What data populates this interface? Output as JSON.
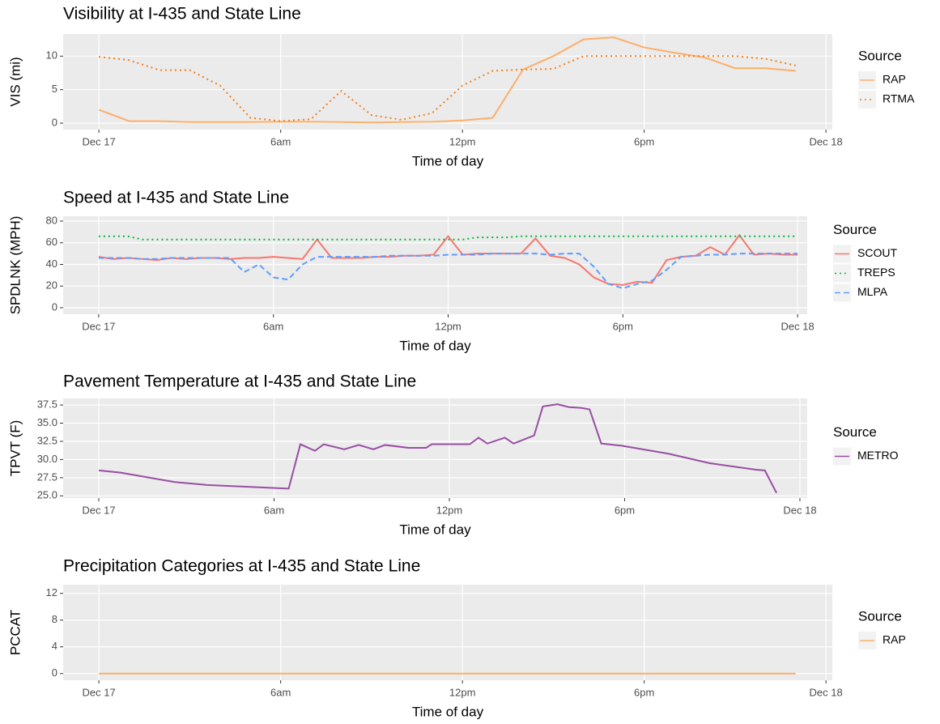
{
  "chart_data": [
    {
      "type": "line",
      "title": "Visibility at I-435 and State Line",
      "xlabel": "Time of day",
      "ylabel": "VIS (mi)",
      "x": [
        0,
        1,
        2,
        3,
        4,
        5,
        6,
        7,
        8,
        9,
        10,
        11,
        12,
        13,
        14,
        15,
        16,
        17,
        18,
        19,
        20,
        21,
        22,
        23
      ],
      "xlim": [
        -1.18,
        24.21
      ],
      "xticks": [
        {
          "value": 0,
          "label": "Dec 17"
        },
        {
          "value": 6,
          "label": "6am"
        },
        {
          "value": 12,
          "label": "12pm"
        },
        {
          "value": 18,
          "label": "6pm"
        },
        {
          "value": 24,
          "label": "Dec 18"
        }
      ],
      "ylim": [
        -0.96,
        13.3
      ],
      "yticks": [
        0,
        5,
        10
      ],
      "grid": true,
      "legend": "right",
      "legend_title": "Source",
      "series": [
        {
          "name": "RAP",
          "color": "#fdae6b",
          "linetype": "solid",
          "values": [
            2,
            0.3,
            0.3,
            0.15,
            0.15,
            0.15,
            0.2,
            0.2,
            0.15,
            0.1,
            0.15,
            0.2,
            0.4,
            0.8,
            8,
            10,
            12.5,
            12.8,
            11.3,
            10.5,
            9.8,
            8.2,
            8.2,
            7.8
          ]
        },
        {
          "name": "RTMA",
          "color": "#f57f17",
          "linetype": "dotted",
          "values": [
            9.9,
            9.4,
            7.9,
            7.9,
            5.6,
            0.8,
            0.3,
            0.6,
            4.8,
            1.2,
            0.5,
            1.5,
            5.6,
            7.8,
            8,
            8.1,
            10,
            10,
            10,
            10,
            10,
            10,
            9.6,
            8.6
          ]
        }
      ]
    },
    {
      "type": "line",
      "title": "Speed at I-435 and State Line",
      "xlabel": "Time of day",
      "ylabel": "SPDLNK (MPH)",
      "x": [
        0,
        0.5,
        1,
        1.5,
        2,
        2.5,
        3,
        3.5,
        4,
        4.5,
        5,
        5.5,
        6,
        6.5,
        7,
        7.5,
        8,
        8.5,
        9,
        9.5,
        10,
        10.5,
        11,
        11.5,
        12,
        12.5,
        13,
        13.5,
        14,
        14.5,
        15,
        15.5,
        16,
        16.5,
        17,
        17.5,
        18,
        18.5,
        19,
        19.5,
        20,
        20.5,
        21,
        21.5,
        22,
        22.5,
        23,
        23.5,
        24
      ],
      "xlim": [
        -1.22,
        24.33
      ],
      "xticks": [
        {
          "value": 0,
          "label": "Dec 17"
        },
        {
          "value": 6,
          "label": "6am"
        },
        {
          "value": 12,
          "label": "12pm"
        },
        {
          "value": 18,
          "label": "6pm"
        },
        {
          "value": 24,
          "label": "Dec 18"
        }
      ],
      "ylim": [
        -6,
        84.5
      ],
      "yticks": [
        0,
        20,
        40,
        60,
        80
      ],
      "grid": true,
      "legend": "right",
      "legend_title": "Source",
      "series": [
        {
          "name": "SCOUT",
          "color": "#f8766d",
          "linetype": "solid",
          "values": [
            47,
            45,
            46,
            45,
            44,
            46,
            45,
            46,
            46,
            45,
            46,
            46,
            47,
            46,
            45,
            63,
            46,
            46,
            46,
            47,
            47,
            48,
            48,
            49,
            66,
            49,
            50,
            50,
            50,
            50,
            64,
            48,
            46,
            40,
            28,
            22,
            21,
            24,
            23,
            44,
            47,
            48,
            56,
            49,
            67,
            49,
            50,
            49,
            49
          ]
        },
        {
          "name": "TREPS",
          "color": "#00ba38",
          "linetype": "dotted",
          "values": [
            66,
            66,
            66,
            63,
            63,
            63,
            63,
            63,
            63,
            63,
            63,
            63,
            63,
            63,
            63,
            63,
            63,
            63,
            63,
            63,
            63,
            63,
            63,
            63,
            63,
            63,
            65,
            65,
            65,
            66,
            66,
            66,
            66,
            66,
            66,
            66,
            66,
            66,
            66,
            66,
            66,
            66,
            66,
            66,
            66,
            66,
            66,
            66,
            66
          ]
        },
        {
          "name": "MLPA",
          "color": "#619cff",
          "linetype": "dashed",
          "values": [
            46,
            46,
            46,
            45,
            45,
            46,
            46,
            46,
            46,
            46,
            33,
            40,
            28,
            26,
            40,
            47,
            47,
            47,
            47,
            47,
            48,
            48,
            48,
            48,
            49,
            49,
            49,
            50,
            50,
            50,
            50,
            49,
            50,
            50,
            38,
            22,
            18,
            22,
            25,
            35,
            47,
            48,
            49,
            49,
            50,
            50,
            50,
            50,
            50
          ]
        }
      ]
    },
    {
      "type": "line",
      "title": "Pavement Temperature at I-435 and State Line",
      "xlabel": "Time of day",
      "ylabel": "TPVT (F)",
      "x": [
        0,
        0.75,
        2.6,
        3.7,
        4.8,
        6.5,
        6.9,
        7.4,
        7.7,
        8.4,
        8.9,
        9.4,
        9.8,
        10.6,
        11.2,
        11.4,
        12.7,
        13,
        13.3,
        13.9,
        14.2,
        14.9,
        15.2,
        15.7,
        16.1,
        16.5,
        16.8,
        17.2,
        17.9,
        19.5,
        20.9,
        22.5,
        22.8,
        23.2
      ],
      "xlim": [
        -1.22,
        24.25
      ],
      "xticks": [
        {
          "value": 0,
          "label": "Dec 17"
        },
        {
          "value": 6,
          "label": "6am"
        },
        {
          "value": 12,
          "label": "12pm"
        },
        {
          "value": 18,
          "label": "6pm"
        },
        {
          "value": 24,
          "label": "Dec 18"
        }
      ],
      "ylim": [
        24.7,
        38.4
      ],
      "yticks": [
        {
          "value": 25,
          "label": "25.0"
        },
        {
          "value": 27.5,
          "label": "27.5"
        },
        {
          "value": 30,
          "label": "30.0"
        },
        {
          "value": 32.5,
          "label": "32.5"
        },
        {
          "value": 35,
          "label": "35.0"
        },
        {
          "value": 37.5,
          "label": "37.5"
        }
      ],
      "grid": true,
      "legend": "right",
      "legend_title": "Source",
      "series": [
        {
          "name": "METRO",
          "color": "#984ea3",
          "linetype": "solid",
          "values": [
            28.5,
            28.2,
            26.9,
            26.5,
            26.3,
            26.0,
            32.1,
            31.2,
            32.1,
            31.4,
            32.0,
            31.4,
            32.0,
            31.6,
            31.6,
            32.1,
            32.1,
            33.0,
            32.2,
            33.0,
            32.2,
            33.3,
            37.3,
            37.6,
            37.2,
            37.1,
            36.9,
            32.2,
            31.9,
            30.8,
            29.5,
            28.6,
            28.5,
            25.4
          ]
        }
      ]
    },
    {
      "type": "line",
      "title": "Precipitation Categories at I-435 and State Line",
      "xlabel": "Time of day",
      "ylabel": "PCCAT",
      "x": [
        0,
        23
      ],
      "xlim": [
        -1.18,
        24.21
      ],
      "xticks": [
        {
          "value": 0,
          "label": "Dec 17"
        },
        {
          "value": 6,
          "label": "6am"
        },
        {
          "value": 12,
          "label": "12pm"
        },
        {
          "value": 18,
          "label": "6pm"
        },
        {
          "value": 24,
          "label": "Dec 18"
        }
      ],
      "ylim": [
        -1,
        13.3
      ],
      "yticks": [
        0,
        4,
        8,
        12
      ],
      "grid": true,
      "legend": "right",
      "legend_title": "Source",
      "series": [
        {
          "name": "RAP",
          "color": "#fdae6b",
          "linetype": "solid",
          "values": [
            0,
            0
          ]
        }
      ]
    }
  ]
}
